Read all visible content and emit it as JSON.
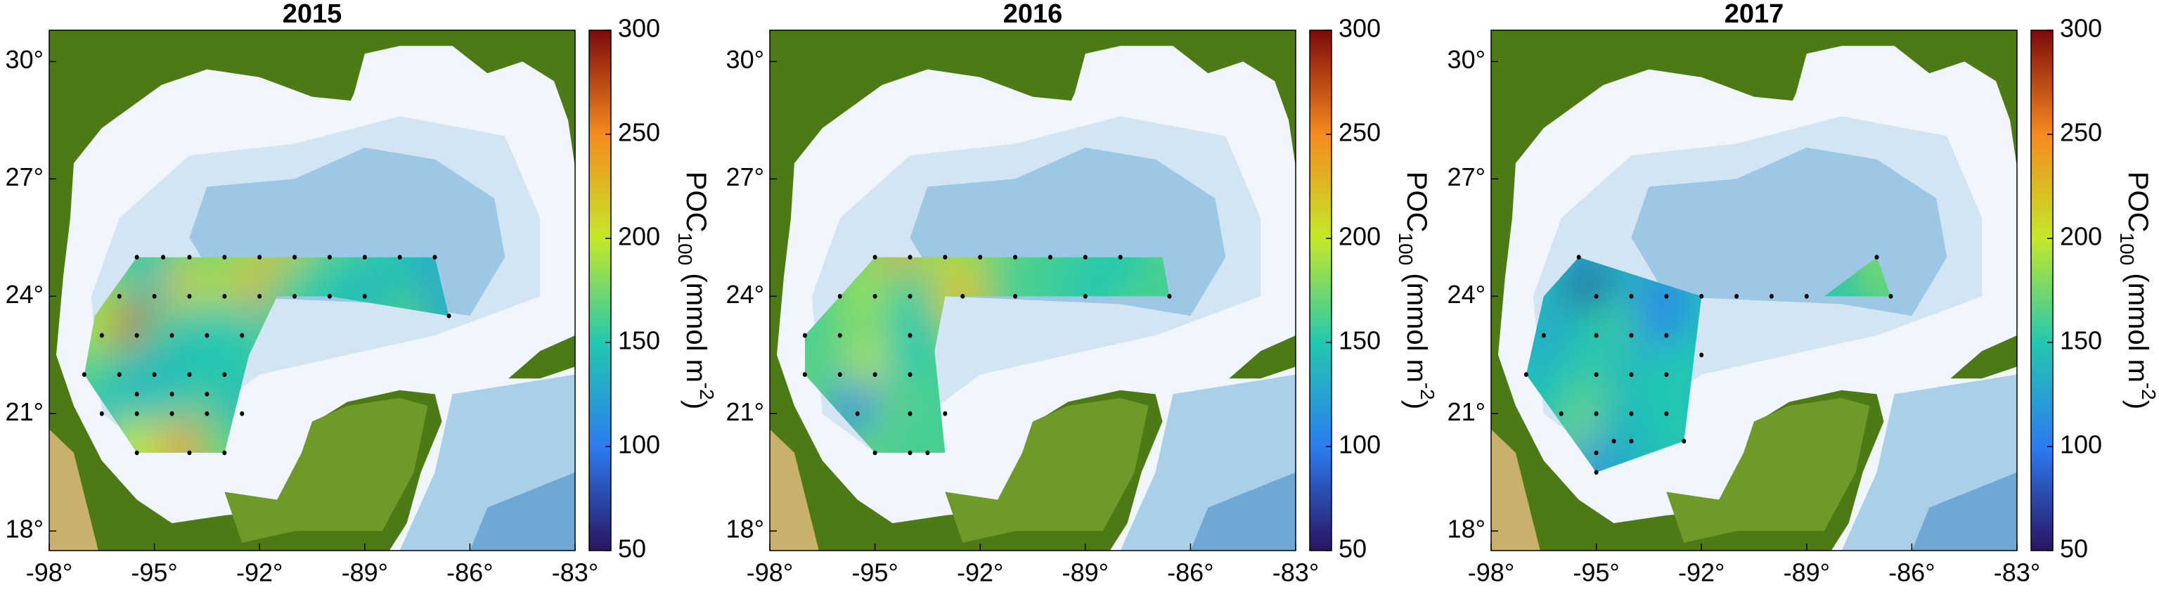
{
  "chart_data": [
    {
      "type": "map",
      "title": "2015",
      "xlim": [
        -98,
        -83
      ],
      "ylim": [
        17.5,
        30.8
      ],
      "xticks": [
        {
          "value": -98,
          "label": "-98°"
        },
        {
          "value": -95,
          "label": "-95°"
        },
        {
          "value": -92,
          "label": "-92°"
        },
        {
          "value": -89,
          "label": "-89°"
        },
        {
          "value": -86,
          "label": "-86°"
        },
        {
          "value": -83,
          "label": "-83°"
        }
      ],
      "yticks": [
        {
          "value": 18,
          "label": "18°"
        },
        {
          "value": 21,
          "label": "21°"
        },
        {
          "value": 24,
          "label": "24°"
        },
        {
          "value": 27,
          "label": "27°"
        },
        {
          "value": 30,
          "label": "30°"
        }
      ],
      "clim": [
        50,
        300
      ],
      "cticks": [
        50,
        100,
        150,
        200,
        250,
        300
      ],
      "colormap": [
        "#2a1460",
        "#2c7cf0",
        "#22c8b0",
        "#c4e828",
        "#f58a1e",
        "#7c0a0a"
      ],
      "colorbar_label": {
        "main": "POC",
        "sub": "100",
        "unit": " (mmol m",
        "sup": "-2",
        "close": ")"
      },
      "survey_area": {
        "lon": [
          -95.5,
          -87,
          -86.6,
          -90,
          -91.5,
          -92.3,
          -93,
          -95.5,
          -97,
          -96.7
        ],
        "lat": [
          25,
          25,
          23.5,
          24,
          24,
          22.5,
          20,
          20,
          22,
          23.5
        ]
      },
      "stations": {
        "lon": [
          -95.5,
          -94.75,
          -94,
          -93,
          -92,
          -91,
          -90,
          -89,
          -88,
          -87,
          -96,
          -95,
          -94,
          -93,
          -92,
          -91,
          -90,
          -89,
          -86.6,
          -96.5,
          -95.5,
          -94.5,
          -93.5,
          -92.5,
          -97,
          -96,
          -95,
          -94,
          -93,
          -95.5,
          -94.5,
          -93.5,
          -96.5,
          -95.5,
          -94.5,
          -93.5,
          -92.5,
          -95.5,
          -94,
          -93
        ],
        "lat": [
          25,
          25,
          25,
          25,
          25,
          25,
          25,
          25,
          25,
          25,
          24,
          24,
          24,
          24,
          24,
          24,
          24,
          24,
          23.5,
          23,
          23,
          23,
          23,
          23,
          22,
          22,
          22,
          22,
          22,
          21.5,
          21.5,
          21.5,
          21,
          21,
          21,
          21,
          21,
          20,
          20,
          20
        ],
        "values": [
          160,
          150,
          170,
          170,
          180,
          220,
          170,
          160,
          150,
          130,
          180,
          140,
          220,
          190,
          230,
          160,
          150,
          140,
          130,
          200,
          270,
          160,
          150,
          150,
          170,
          160,
          150,
          140,
          150,
          140,
          130,
          150,
          150,
          140,
          150,
          160,
          140,
          200,
          240,
          170
        ]
      }
    },
    {
      "type": "map",
      "title": "2016",
      "xlim": [
        -98,
        -83
      ],
      "ylim": [
        17.5,
        30.8
      ],
      "xticks": [
        {
          "value": -98,
          "label": "-98°"
        },
        {
          "value": -95,
          "label": "-95°"
        },
        {
          "value": -92,
          "label": "-92°"
        },
        {
          "value": -89,
          "label": "-89°"
        },
        {
          "value": -86,
          "label": "-86°"
        },
        {
          "value": -83,
          "label": "-83°"
        }
      ],
      "yticks": [
        {
          "value": 18,
          "label": "18°"
        },
        {
          "value": 21,
          "label": "21°"
        },
        {
          "value": 24,
          "label": "24°"
        },
        {
          "value": 27,
          "label": "27°"
        },
        {
          "value": 30,
          "label": "30°"
        }
      ],
      "clim": [
        50,
        300
      ],
      "cticks": [
        50,
        100,
        150,
        200,
        250,
        300
      ],
      "colormap": [
        "#2a1460",
        "#2c7cf0",
        "#22c8b0",
        "#c4e828",
        "#f58a1e",
        "#7c0a0a"
      ],
      "colorbar_label": {
        "main": "POC",
        "sub": "100",
        "unit": " (mmol m",
        "sup": "-2",
        "close": ")"
      },
      "survey_area": {
        "lon": [
          -95,
          -86.8,
          -86.6,
          -93,
          -93.3,
          -93,
          -95,
          -97,
          -97,
          -96
        ],
        "lat": [
          25,
          25,
          24,
          24,
          22.6,
          20,
          20,
          22,
          23,
          24
        ]
      },
      "stations": {
        "lon": [
          -95,
          -94,
          -93,
          -92,
          -91,
          -90,
          -89,
          -88,
          -96,
          -95,
          -94,
          -92.5,
          -91,
          -89,
          -86.6,
          -97,
          -96,
          -94,
          -97,
          -96,
          -95,
          -94,
          -95.5,
          -94,
          -93,
          -95,
          -94,
          -93.5
        ],
        "lat": [
          25,
          25,
          25,
          25,
          25,
          25,
          25,
          25,
          24,
          24,
          24,
          24,
          24,
          24,
          24,
          23,
          23,
          23,
          22,
          22,
          22,
          22,
          21,
          21,
          21,
          20,
          20,
          20
        ],
        "values": [
          170,
          240,
          190,
          180,
          170,
          160,
          160,
          150,
          170,
          190,
          160,
          220,
          160,
          150,
          160,
          150,
          170,
          150,
          170,
          160,
          200,
          150,
          110,
          170,
          160,
          170,
          160,
          160
        ]
      }
    },
    {
      "type": "map",
      "title": "2017",
      "xlim": [
        -98,
        -83
      ],
      "ylim": [
        17.5,
        30.8
      ],
      "xticks": [
        {
          "value": -98,
          "label": "-98°"
        },
        {
          "value": -95,
          "label": "-95°"
        },
        {
          "value": -92,
          "label": "-92°"
        },
        {
          "value": -89,
          "label": "-89°"
        },
        {
          "value": -86,
          "label": "-86°"
        },
        {
          "value": -83,
          "label": "-83°"
        }
      ],
      "yticks": [
        {
          "value": 18,
          "label": "18°"
        },
        {
          "value": 21,
          "label": "21°"
        },
        {
          "value": 24,
          "label": "24°"
        },
        {
          "value": 27,
          "label": "27°"
        },
        {
          "value": 30,
          "label": "30°"
        }
      ],
      "clim": [
        50,
        300
      ],
      "cticks": [
        50,
        100,
        150,
        200,
        250,
        300
      ],
      "colormap": [
        "#2a1460",
        "#2c7cf0",
        "#22c8b0",
        "#c4e828",
        "#f58a1e",
        "#7c0a0a"
      ],
      "colorbar_label": {
        "main": "POC",
        "sub": "100",
        "unit": " (mmol m",
        "sup": "-2",
        "close": ")"
      },
      "survey_area": {
        "lon": [
          -95.5,
          -92,
          -88.5,
          -87,
          -86.6,
          -88.5,
          -92,
          -92.5,
          -95,
          -97,
          -96.5
        ],
        "lat": [
          25,
          24,
          24,
          25,
          24,
          24,
          24,
          20.3,
          19.5,
          22,
          24
        ]
      },
      "stations": {
        "lon": [
          -95.5,
          -95,
          -94,
          -93,
          -92,
          -91,
          -90,
          -89,
          -87,
          -86.6,
          -96.5,
          -95,
          -94,
          -93,
          -92,
          -97,
          -95,
          -94,
          -93,
          -96,
          -95,
          -94,
          -93,
          -95,
          -94.5,
          -94,
          -92.5,
          -95
        ],
        "lat": [
          25,
          24,
          24,
          24,
          24,
          24,
          24,
          24,
          25,
          24,
          23,
          23,
          23,
          23,
          22.5,
          22,
          22,
          22,
          22,
          21,
          21,
          21,
          21,
          20,
          20.3,
          20.3,
          20.3,
          19.5
        ],
        "values": [
          130,
          70,
          130,
          110,
          130,
          150,
          150,
          160,
          180,
          170,
          130,
          150,
          160,
          100,
          150,
          140,
          150,
          140,
          150,
          150,
          170,
          140,
          150,
          200,
          140,
          140,
          150,
          120
        ]
      }
    }
  ]
}
